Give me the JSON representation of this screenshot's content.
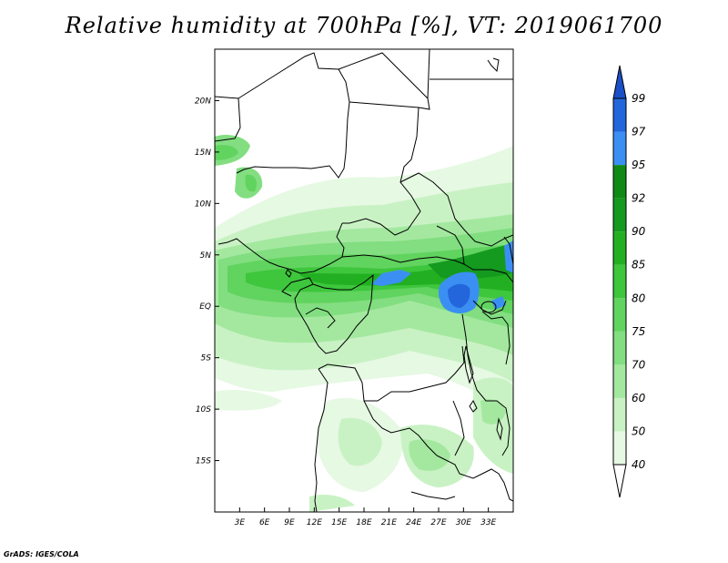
{
  "title": "Relative humidity at 700hPa [%], VT: 2019061700",
  "credit": "GrADS: IGES/COLA",
  "map": {
    "lon_range": [
      0,
      36
    ],
    "lat_range": [
      -20,
      25
    ],
    "lon_ticks": [
      {
        "value": 3,
        "label": "3E"
      },
      {
        "value": 6,
        "label": "6E"
      },
      {
        "value": 9,
        "label": "9E"
      },
      {
        "value": 12,
        "label": "12E"
      },
      {
        "value": 15,
        "label": "15E"
      },
      {
        "value": 18,
        "label": "18E"
      },
      {
        "value": 21,
        "label": "21E"
      },
      {
        "value": 24,
        "label": "24E"
      },
      {
        "value": 27,
        "label": "27E"
      },
      {
        "value": 30,
        "label": "30E"
      },
      {
        "value": 33,
        "label": "33E"
      }
    ],
    "lat_ticks": [
      {
        "value": 20,
        "label": "20N"
      },
      {
        "value": 15,
        "label": "15N"
      },
      {
        "value": 10,
        "label": "10N"
      },
      {
        "value": 5,
        "label": "5N"
      },
      {
        "value": 0,
        "label": "EQ"
      },
      {
        "value": -5,
        "label": "5S"
      },
      {
        "value": -10,
        "label": "10S"
      },
      {
        "value": -15,
        "label": "15S"
      }
    ]
  },
  "colorbar": {
    "levels": [
      "40",
      "50",
      "60",
      "70",
      "75",
      "80",
      "85",
      "90",
      "92",
      "95",
      "97",
      "99"
    ],
    "colors": [
      "#ffffff",
      "#e6f9e3",
      "#c9f2c4",
      "#a4e8a0",
      "#82de80",
      "#61d35f",
      "#3ec63d",
      "#22b022",
      "#149a1f",
      "#0f8a17",
      "#3c8ff2",
      "#2366dc",
      "#1a4fc8"
    ]
  }
}
